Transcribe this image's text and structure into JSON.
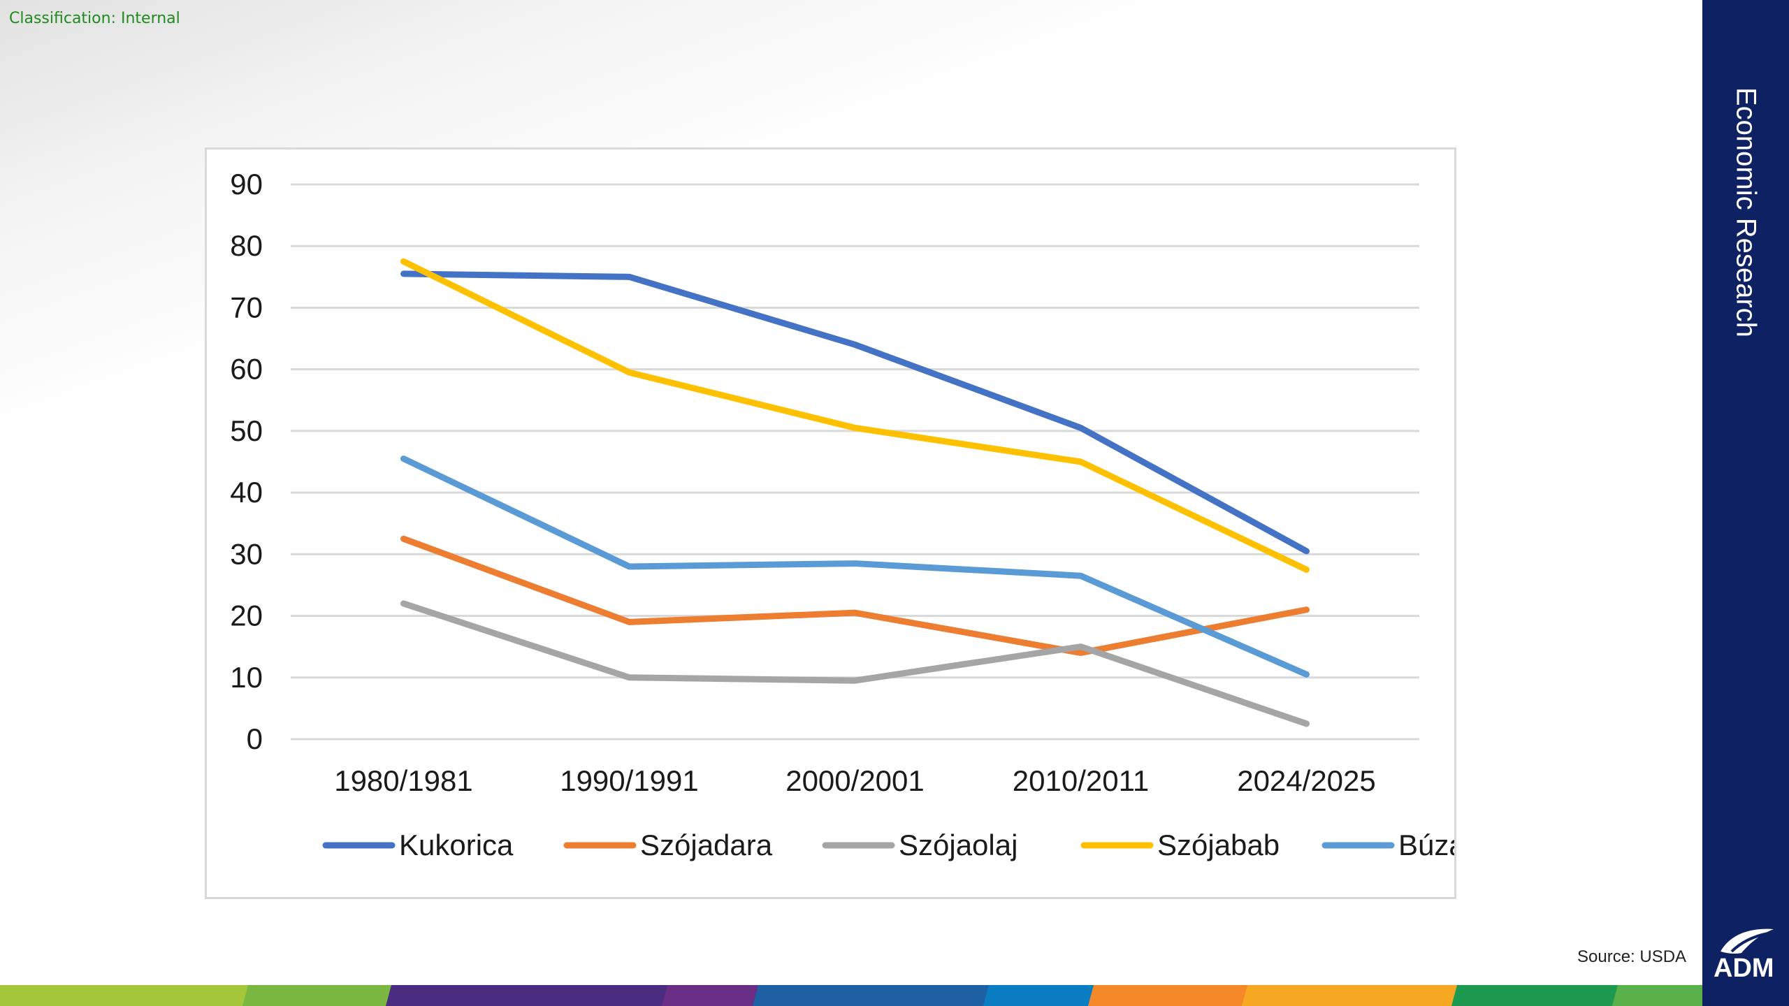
{
  "header": {
    "classification": "Classification: Internal"
  },
  "sidebar": {
    "title": "Economic Research",
    "logo_text": "ADM"
  },
  "footer": {
    "source": "Source: USDA",
    "stripe_colors": [
      "#a3c63a",
      "#7bb842",
      "#4a2d80",
      "#6b2e86",
      "#1f5fa3",
      "#0a7dc2",
      "#f5892a",
      "#f7a823",
      "#1d9a4f",
      "#5ab14a"
    ]
  },
  "colors": {
    "panel": "#0d2163",
    "classification": "#1f8a1f",
    "gridline": "#d9d9d9"
  },
  "chart_data": {
    "type": "line",
    "title": "",
    "xlabel": "",
    "ylabel": "",
    "categories": [
      "1980/1981",
      "1990/1991",
      "2000/2001",
      "2010/2011",
      "2024/2025"
    ],
    "ylim": [
      0,
      90
    ],
    "yticks": [
      0,
      10,
      20,
      30,
      40,
      50,
      60,
      70,
      80,
      90
    ],
    "grid": true,
    "legend_position": "bottom",
    "series": [
      {
        "name": "Kukorica",
        "color": "#4472c4",
        "values": [
          75.5,
          75.0,
          64.0,
          50.5,
          30.5
        ]
      },
      {
        "name": "Szójadara",
        "color": "#ed7d31",
        "values": [
          32.5,
          19.0,
          20.5,
          14.0,
          21.0
        ]
      },
      {
        "name": "Szójaolaj",
        "color": "#a5a5a5",
        "values": [
          22.0,
          10.0,
          9.5,
          15.0,
          2.5
        ]
      },
      {
        "name": "Szójabab",
        "color": "#ffc000",
        "values": [
          77.5,
          59.5,
          50.5,
          45.0,
          27.5
        ]
      },
      {
        "name": "Búza",
        "color": "#5b9bd5",
        "values": [
          45.5,
          28.0,
          28.5,
          26.5,
          10.5
        ]
      }
    ]
  }
}
